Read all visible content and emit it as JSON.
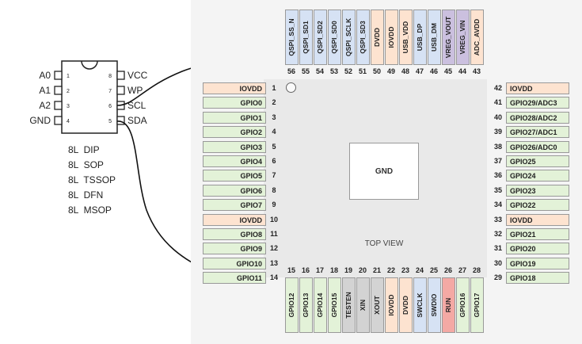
{
  "eeprom": {
    "left_pins": [
      {
        "num": "1",
        "name": "A0"
      },
      {
        "num": "2",
        "name": "A1"
      },
      {
        "num": "3",
        "name": "A2"
      },
      {
        "num": "4",
        "name": "GND"
      }
    ],
    "right_pins": [
      {
        "num": "8",
        "name": "VCC"
      },
      {
        "num": "7",
        "name": "WP"
      },
      {
        "num": "6",
        "name": "SCL"
      },
      {
        "num": "5",
        "name": "SDA"
      }
    ],
    "packages": [
      "8L  DIP",
      "8L  SOP",
      "8L  TSSOP",
      "8L  DFN",
      "8L  MSOP"
    ]
  },
  "annotations": {
    "question_top": "?",
    "question_bottom": "?"
  },
  "rp2040": {
    "center_label": "GND",
    "top_view_label": "TOP VIEW",
    "colors": {
      "power": "#fde3d0",
      "gpio": "#e3f2d8",
      "qspi": "#d6e2f4",
      "vreg": "#cbc0df",
      "test": "#d3d3d3",
      "run": "#f4a9a4"
    },
    "left_pins": [
      {
        "num": "1",
        "name": "IOVDD",
        "type": "power"
      },
      {
        "num": "2",
        "name": "GPIO0",
        "type": "gpio"
      },
      {
        "num": "3",
        "name": "GPIO1",
        "type": "gpio"
      },
      {
        "num": "4",
        "name": "GPIO2",
        "type": "gpio"
      },
      {
        "num": "5",
        "name": "GPIO3",
        "type": "gpio"
      },
      {
        "num": "6",
        "name": "GPIO4",
        "type": "gpio"
      },
      {
        "num": "7",
        "name": "GPIO5",
        "type": "gpio"
      },
      {
        "num": "8",
        "name": "GPIO6",
        "type": "gpio"
      },
      {
        "num": "9",
        "name": "GPIO7",
        "type": "gpio"
      },
      {
        "num": "10",
        "name": "IOVDD",
        "type": "power"
      },
      {
        "num": "11",
        "name": "GPIO8",
        "type": "gpio"
      },
      {
        "num": "12",
        "name": "GPIO9",
        "type": "gpio"
      },
      {
        "num": "13",
        "name": "GPIO10",
        "type": "gpio"
      },
      {
        "num": "14",
        "name": "GPIO11",
        "type": "gpio"
      }
    ],
    "right_pins": [
      {
        "num": "42",
        "name": "IOVDD",
        "type": "power"
      },
      {
        "num": "41",
        "name": "GPIO29/ADC3",
        "type": "gpio"
      },
      {
        "num": "40",
        "name": "GPIO28/ADC2",
        "type": "gpio"
      },
      {
        "num": "39",
        "name": "GPIO27/ADC1",
        "type": "gpio"
      },
      {
        "num": "38",
        "name": "GPIO26/ADC0",
        "type": "gpio"
      },
      {
        "num": "37",
        "name": "GPIO25",
        "type": "gpio"
      },
      {
        "num": "36",
        "name": "GPIO24",
        "type": "gpio"
      },
      {
        "num": "35",
        "name": "GPIO23",
        "type": "gpio"
      },
      {
        "num": "34",
        "name": "GPIO22",
        "type": "gpio"
      },
      {
        "num": "33",
        "name": "IOVDD",
        "type": "power"
      },
      {
        "num": "32",
        "name": "GPIO21",
        "type": "gpio"
      },
      {
        "num": "31",
        "name": "GPIO20",
        "type": "gpio"
      },
      {
        "num": "30",
        "name": "GPIO19",
        "type": "gpio"
      },
      {
        "num": "29",
        "name": "GPIO18",
        "type": "gpio"
      }
    ],
    "top_pins": [
      {
        "num": "56",
        "name": "QSPI_SS_N",
        "type": "qspi"
      },
      {
        "num": "55",
        "name": "QSPI_SD1",
        "type": "qspi"
      },
      {
        "num": "54",
        "name": "QSPI_SD2",
        "type": "qspi"
      },
      {
        "num": "53",
        "name": "QSPI_SD0",
        "type": "qspi"
      },
      {
        "num": "52",
        "name": "QSPI_SCLK",
        "type": "qspi"
      },
      {
        "num": "51",
        "name": "QSPI_SD3",
        "type": "qspi"
      },
      {
        "num": "50",
        "name": "DVDD",
        "type": "power"
      },
      {
        "num": "49",
        "name": "IOVDD",
        "type": "power"
      },
      {
        "num": "48",
        "name": "USB_VDD",
        "type": "power"
      },
      {
        "num": "47",
        "name": "USB_DP",
        "type": "qspi"
      },
      {
        "num": "46",
        "name": "USB_DM",
        "type": "qspi"
      },
      {
        "num": "45",
        "name": "VREG_VOUT",
        "type": "vreg"
      },
      {
        "num": "44",
        "name": "VREG_VIN",
        "type": "vreg"
      },
      {
        "num": "43",
        "name": "ADC_AVDD",
        "type": "power"
      }
    ],
    "bottom_pins": [
      {
        "num": "15",
        "name": "GPIO12",
        "type": "gpio"
      },
      {
        "num": "16",
        "name": "GPIO13",
        "type": "gpio"
      },
      {
        "num": "17",
        "name": "GPIO14",
        "type": "gpio"
      },
      {
        "num": "18",
        "name": "GPIO15",
        "type": "gpio"
      },
      {
        "num": "19",
        "name": "TESTEN",
        "type": "test"
      },
      {
        "num": "20",
        "name": "XIN",
        "type": "test"
      },
      {
        "num": "21",
        "name": "XOUT",
        "type": "test"
      },
      {
        "num": "22",
        "name": "IOVDD",
        "type": "power"
      },
      {
        "num": "23",
        "name": "DVDD",
        "type": "power"
      },
      {
        "num": "24",
        "name": "SWCLK",
        "type": "qspi"
      },
      {
        "num": "25",
        "name": "SWDIO",
        "type": "qspi"
      },
      {
        "num": "26",
        "name": "RUN",
        "type": "run"
      },
      {
        "num": "27",
        "name": "GPIO16",
        "type": "gpio"
      },
      {
        "num": "28",
        "name": "GPIO17",
        "type": "gpio"
      }
    ]
  }
}
